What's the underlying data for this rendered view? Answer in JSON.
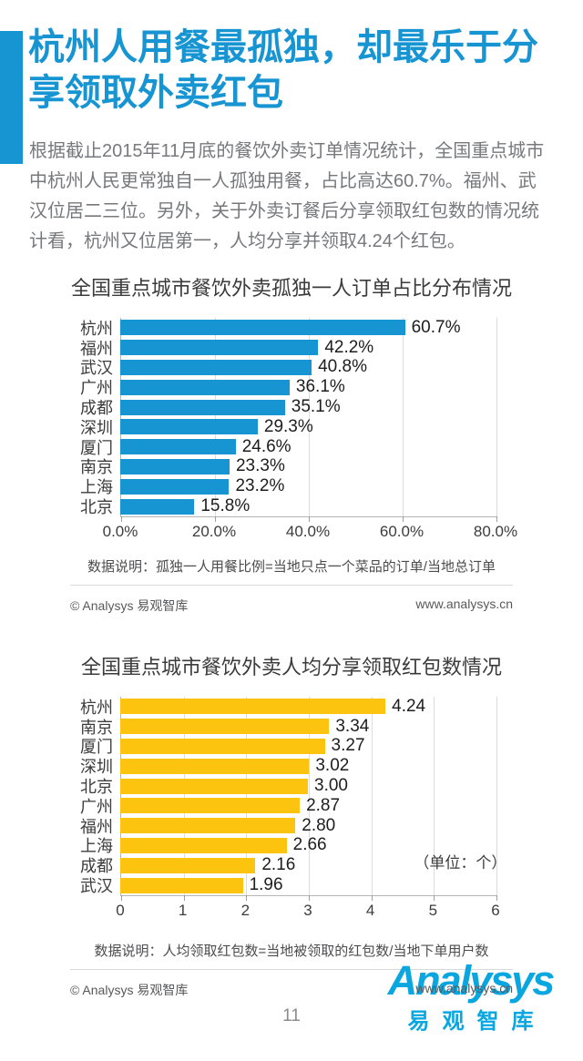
{
  "header": {
    "title_line1": "杭州人用餐最孤独，却最乐于分",
    "title_line2": "享领取外卖红包",
    "paragraph": "根据截止2015年11月底的餐饮外卖订单情况统计，全国重点城市中杭州人民更常独自一人孤独用餐，占比高达60.7%。福州、武汉位居二三位。另外，关于外卖订餐后分享领取红包数的情况统计看，杭州又位居第一，人均分享并领取4.24个红包。"
  },
  "chart_data": [
    {
      "type": "bar",
      "orientation": "horizontal",
      "title": "全国重点城市餐饮外卖孤独一人订单占比分布情况",
      "categories": [
        "杭州",
        "福州",
        "武汉",
        "广州",
        "成都",
        "深圳",
        "厦门",
        "南京",
        "上海",
        "北京"
      ],
      "values": [
        60.7,
        42.2,
        40.8,
        36.1,
        35.1,
        29.3,
        24.6,
        23.3,
        23.2,
        15.8
      ],
      "value_labels": [
        "60.7%",
        "42.2%",
        "40.8%",
        "36.1%",
        "35.1%",
        "29.3%",
        "24.6%",
        "23.3%",
        "23.2%",
        "15.8%"
      ],
      "x_ticks": [
        "0.0%",
        "20.0%",
        "40.0%",
        "60.0%",
        "80.0%"
      ],
      "xlim": [
        0,
        80
      ],
      "grid": true,
      "bar_color": "#1794d2",
      "note": "数据说明：孤独一人用餐比例=当地只点一个菜品的订单/当地总订单",
      "copyright": "© Analysys 易观智库",
      "website": "www.analysys.cn"
    },
    {
      "type": "bar",
      "orientation": "horizontal",
      "title": "全国重点城市餐饮外卖人均分享领取红包数情况",
      "categories": [
        "杭州",
        "南京",
        "厦门",
        "深圳",
        "北京",
        "广州",
        "福州",
        "上海",
        "成都",
        "武汉"
      ],
      "values": [
        4.24,
        3.34,
        3.27,
        3.02,
        3.0,
        2.87,
        2.8,
        2.66,
        2.16,
        1.96
      ],
      "value_labels": [
        "4.24",
        "3.34",
        "3.27",
        "3.02",
        "3.00",
        "2.87",
        "2.80",
        "2.66",
        "2.16",
        "1.96"
      ],
      "x_ticks": [
        "0",
        "1",
        "2",
        "3",
        "4",
        "5",
        "6"
      ],
      "xlim": [
        0,
        6
      ],
      "grid": true,
      "unit_label": "（单位：个）",
      "bar_color": "#fcc30f",
      "note": "数据说明：人均领取红包数=当地被领取的红包数/当地下单用户数",
      "copyright": "© Analysys 易观智库",
      "website": "www.analysys.cn"
    }
  ],
  "footer": {
    "copyright": "© Analysys 易观智库",
    "website": "www.analysys.cn",
    "logo_text": "Analysys",
    "logo_sub": "易观智库",
    "page_number": "11"
  },
  "colors": {
    "accent_blue": "#1794d2",
    "bar_blue": "#1794d2",
    "bar_yellow": "#fcc30f",
    "logo_cyan": "#0aa6e0"
  }
}
